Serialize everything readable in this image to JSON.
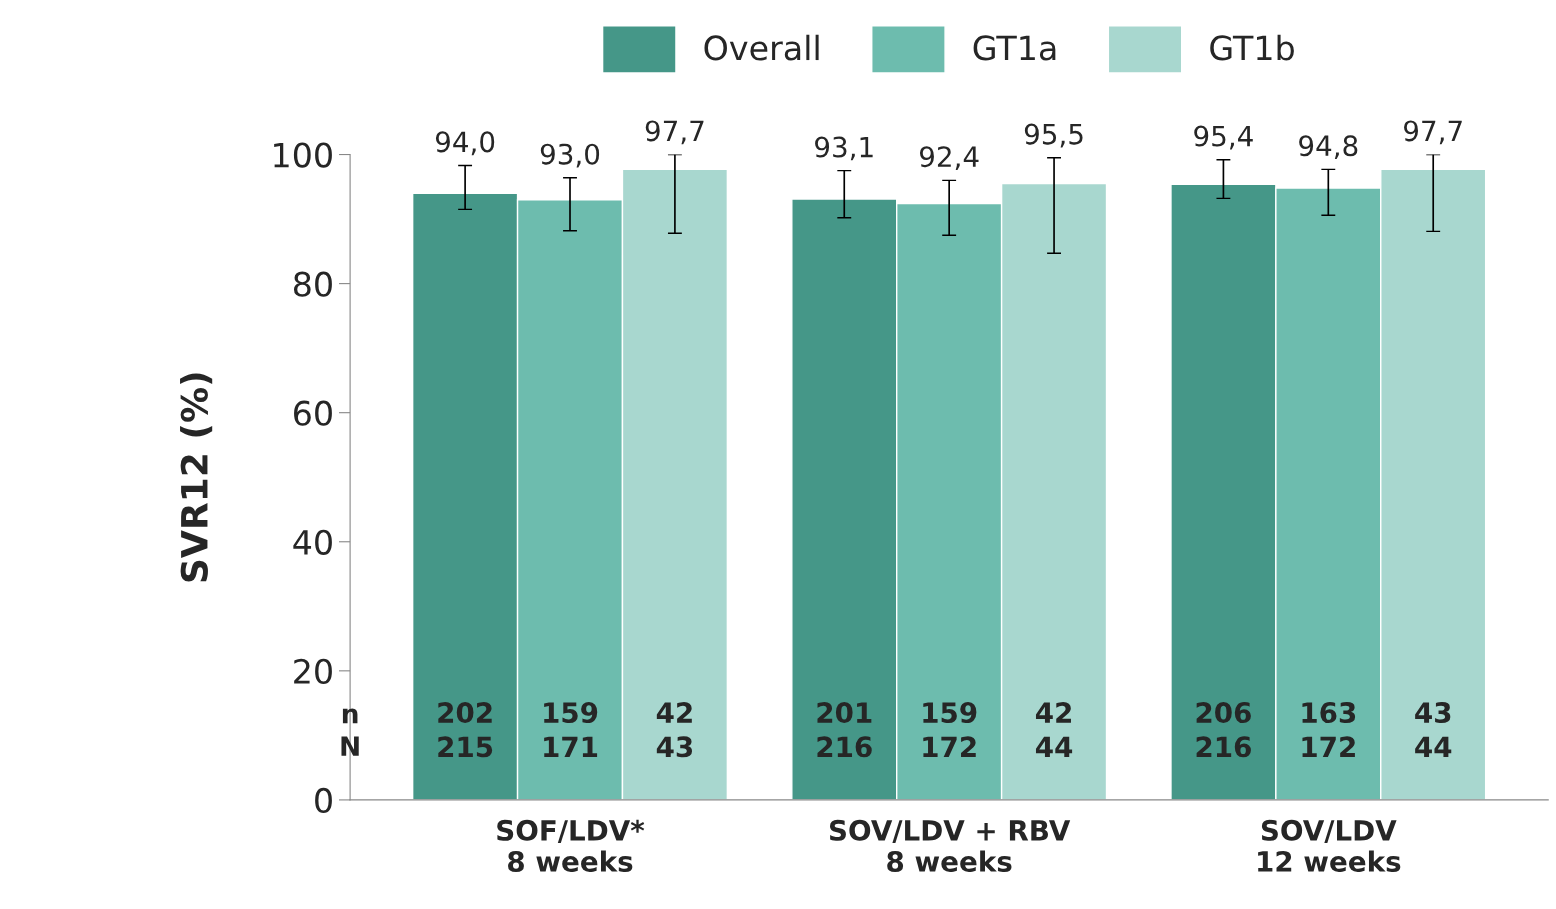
{
  "chart_data": {
    "type": "bar",
    "ylabel": "SVR12 (%)",
    "categories": [
      "SOF/LDV*\n8 weeks",
      "SOV/LDV + RBV\n8 weeks",
      "SOV/LDV\n12 weeks"
    ],
    "series": [
      {
        "name": "Overall",
        "color": "#459788",
        "values": [
          94.0,
          93.1,
          95.4
        ],
        "errors": [
          [
            91.5,
            98.3
          ],
          [
            90.2,
            97.5
          ],
          [
            93.2,
            99.2
          ]
        ],
        "value_labels": [
          "94,0",
          "93,1",
          "95,4"
        ]
      },
      {
        "name": "GT1a",
        "color": "#6dbcae",
        "values": [
          93.0,
          92.4,
          94.8
        ],
        "errors": [
          [
            88.2,
            96.4
          ],
          [
            87.5,
            96.0
          ],
          [
            90.6,
            97.7
          ]
        ],
        "value_labels": [
          "93,0",
          "92,4",
          "94,8"
        ]
      },
      {
        "name": "GT1b",
        "color": "#a8d7cf",
        "values": [
          97.7,
          95.5,
          97.7
        ],
        "errors": [
          [
            87.8,
            100
          ],
          [
            84.7,
            99.5
          ],
          [
            88.1,
            100
          ]
        ],
        "value_labels": [
          "97,7",
          "95,5",
          "97,7"
        ]
      }
    ],
    "annotations": [
      "n\nN",
      "202\n215",
      "159\n171",
      "42\n43",
      "201\n216",
      "159\n172",
      "42\n44",
      "206\n216",
      "163\n172",
      "43\n44"
    ],
    "ylim": [
      0,
      100
    ],
    "yticks": [
      0,
      20,
      40,
      60,
      80,
      100
    ],
    "grid": false,
    "legend": "top"
  }
}
